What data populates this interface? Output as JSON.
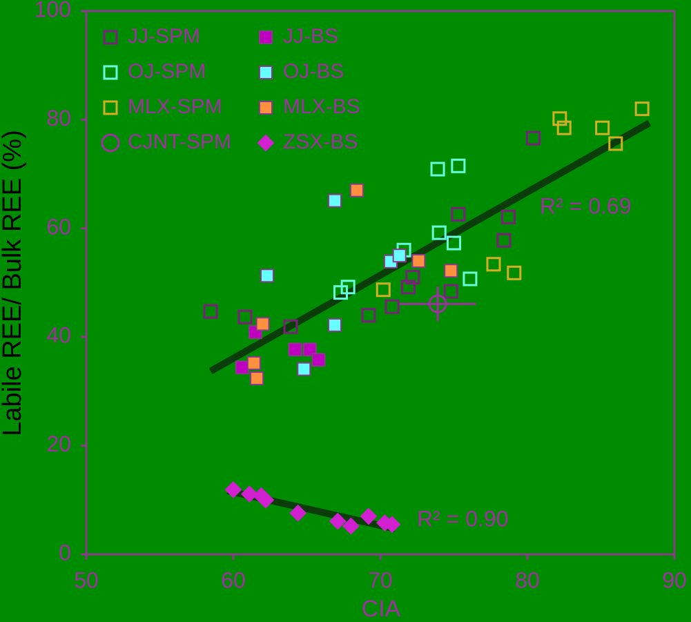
{
  "chart_data": {
    "type": "scatter",
    "xlabel": "CIA",
    "ylabel": "Labile REE/ Bulk REE (%)",
    "xlim": [
      50,
      90
    ],
    "ylim": [
      0,
      100
    ],
    "xticks": [
      50,
      60,
      70,
      80,
      90
    ],
    "yticks": [
      0,
      20,
      40,
      60,
      80,
      100
    ],
    "series": [
      {
        "name": "JJ-SPM",
        "color": "#7a1f7a",
        "marker": "square",
        "filled": false,
        "x": [
          58.45,
          60.8,
          63.9,
          69.2,
          70.8,
          71.9,
          72.2,
          74.8,
          75.3,
          78.4,
          78.7,
          80.4
        ],
        "y": [
          44.7,
          43.7,
          41.9,
          44.0,
          45.6,
          49.2,
          51.0,
          48.4,
          62.6,
          57.8,
          62.1,
          76.6
        ]
      },
      {
        "name": "JJ-BS",
        "color": "#c000c0",
        "marker": "square",
        "filled": true,
        "x": [
          60.6,
          61.5,
          64.2,
          65.2,
          65.8
        ],
        "y": [
          34.4,
          40.9,
          37.7,
          37.7,
          35.8
        ]
      },
      {
        "name": "OJ-SPM",
        "color": "#66ffdd",
        "marker": "square",
        "filled": false,
        "x": [
          73.9,
          75.3,
          74.0,
          75.0,
          76.1,
          71.6,
          67.3,
          67.8
        ],
        "y": [
          70.9,
          71.5,
          59.2,
          57.3,
          50.7,
          56.0,
          48.2,
          49.2
        ]
      },
      {
        "name": "OJ-BS",
        "color": "#66ffff",
        "marker": "square",
        "filled": true,
        "x": [
          66.9,
          62.3,
          66.9,
          64.8,
          70.7,
          71.3
        ],
        "y": [
          65.1,
          51.3,
          42.2,
          34.1,
          53.9,
          55.0
        ]
      },
      {
        "name": "MLX-SPM",
        "color": "#d4b020",
        "marker": "square",
        "filled": false,
        "x": [
          82.2,
          82.5,
          85.1,
          86.0,
          87.8,
          77.7,
          79.1,
          70.2
        ],
        "y": [
          80.2,
          78.5,
          78.5,
          75.6,
          82.0,
          53.4,
          51.8,
          48.7
        ]
      },
      {
        "name": "MLX-BS",
        "color": "#ff9040",
        "marker": "square",
        "filled": true,
        "x": [
          68.4,
          62.0,
          61.4,
          61.6,
          72.6,
          74.8
        ],
        "y": [
          67.0,
          42.4,
          35.2,
          32.4,
          54.0,
          52.2
        ]
      },
      {
        "name": "CJNT-SPM",
        "color": "#a030a0",
        "marker": "circle",
        "filled": false,
        "x": [
          73.9
        ],
        "y": [
          46.1
        ],
        "xerr": [
          2.6
        ],
        "yerr": [
          3.2
        ]
      },
      {
        "name": "ZSX-BS",
        "color": "#d020d0",
        "marker": "diamond",
        "filled": true,
        "x": [
          60.0,
          61.1,
          61.9,
          62.2,
          64.4,
          67.1,
          68.0,
          69.2,
          70.3,
          70.8
        ],
        "y": [
          11.9,
          11.1,
          10.8,
          10.0,
          7.6,
          6.1,
          5.2,
          7.0,
          5.8,
          5.5
        ]
      }
    ],
    "trendlines": [
      {
        "x": [
          58.45,
          88.3
        ],
        "y": [
          33.7,
          79.4
        ],
        "color": "#0b3d0b"
      },
      {
        "x": [
          59.6,
          71.0
        ],
        "y": [
          11.7,
          4.7
        ],
        "color": "#0b3d0b"
      }
    ],
    "annotations": [
      "R² = 0.69",
      "R² = 0.90"
    ]
  }
}
